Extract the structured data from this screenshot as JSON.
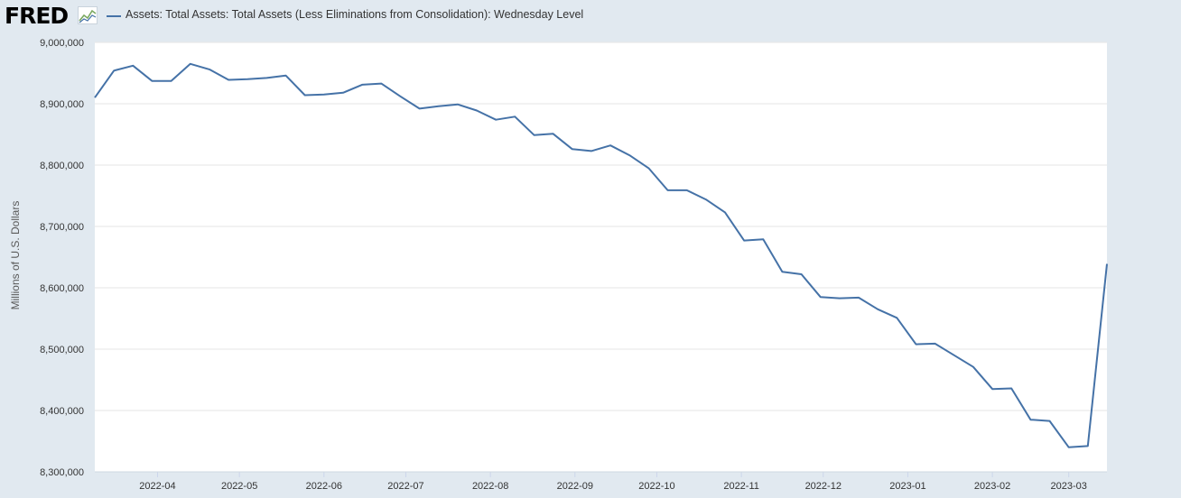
{
  "brand": {
    "logo_text": "FRED",
    "logo_icon": "line-graph-icon"
  },
  "colors": {
    "series": "#4572a7",
    "background": "#e1e9f0",
    "plot": "#ffffff",
    "grid": "#e6e6e6"
  },
  "chart_data": {
    "type": "line",
    "title": "Assets: Total Assets: Total Assets (Less Eliminations from Consolidation): Wednesday Level",
    "ylabel": "Millions of U.S. Dollars",
    "xlabel": "",
    "ylim": [
      8300000,
      9000000
    ],
    "xlim": [
      "2022-03-09",
      "2023-03-15"
    ],
    "yticks": [
      8300000,
      8400000,
      8500000,
      8600000,
      8700000,
      8800000,
      8900000,
      9000000
    ],
    "ytick_labels": [
      "8,300,000",
      "8,400,000",
      "8,500,000",
      "8,600,000",
      "8,700,000",
      "8,800,000",
      "8,900,000",
      "9,000,000"
    ],
    "xticks": [
      "2022-04-01",
      "2022-05-01",
      "2022-06-01",
      "2022-07-01",
      "2022-08-01",
      "2022-09-01",
      "2022-10-01",
      "2022-11-01",
      "2022-12-01",
      "2023-01-01",
      "2023-02-01",
      "2023-03-01"
    ],
    "xtick_labels": [
      "2022-04",
      "2022-05",
      "2022-06",
      "2022-07",
      "2022-08",
      "2022-09",
      "2022-10",
      "2022-11",
      "2022-12",
      "2023-01",
      "2023-02",
      "2023-03"
    ],
    "grid": true,
    "legend": "top-left",
    "series": [
      {
        "name": "Assets: Total Assets: Total Assets (Less Eliminations from Consolidation): Wednesday Level",
        "x": [
          "2022-03-09",
          "2022-03-16",
          "2022-03-23",
          "2022-03-30",
          "2022-04-06",
          "2022-04-13",
          "2022-04-20",
          "2022-04-27",
          "2022-05-04",
          "2022-05-11",
          "2022-05-18",
          "2022-05-25",
          "2022-06-01",
          "2022-06-08",
          "2022-06-15",
          "2022-06-22",
          "2022-06-29",
          "2022-07-06",
          "2022-07-13",
          "2022-07-20",
          "2022-07-27",
          "2022-08-03",
          "2022-08-10",
          "2022-08-17",
          "2022-08-24",
          "2022-08-31",
          "2022-09-07",
          "2022-09-14",
          "2022-09-21",
          "2022-09-28",
          "2022-10-05",
          "2022-10-12",
          "2022-10-19",
          "2022-10-26",
          "2022-11-02",
          "2022-11-09",
          "2022-11-16",
          "2022-11-23",
          "2022-11-30",
          "2022-12-07",
          "2022-12-14",
          "2022-12-21",
          "2022-12-28",
          "2023-01-04",
          "2023-01-11",
          "2023-01-18",
          "2023-01-25",
          "2023-02-01",
          "2023-02-08",
          "2023-02-15",
          "2023-02-22",
          "2023-03-01",
          "2023-03-08",
          "2023-03-15"
        ],
        "values": [
          8910000,
          8954000,
          8962000,
          8937000,
          8937000,
          8965000,
          8956000,
          8939000,
          8940000,
          8942000,
          8946000,
          8914000,
          8915000,
          8918000,
          8931000,
          8933000,
          8912000,
          8892000,
          8896000,
          8899000,
          8889000,
          8874000,
          8879000,
          8849000,
          8851000,
          8826000,
          8823000,
          8832000,
          8816000,
          8795000,
          8759000,
          8759000,
          8744000,
          8723000,
          8677000,
          8679000,
          8626000,
          8622000,
          8585000,
          8583000,
          8584000,
          8565000,
          8551000,
          8508000,
          8509000,
          8490000,
          8471000,
          8435000,
          8436000,
          8385000,
          8383000,
          8340000,
          8342000,
          8639000
        ]
      }
    ]
  }
}
